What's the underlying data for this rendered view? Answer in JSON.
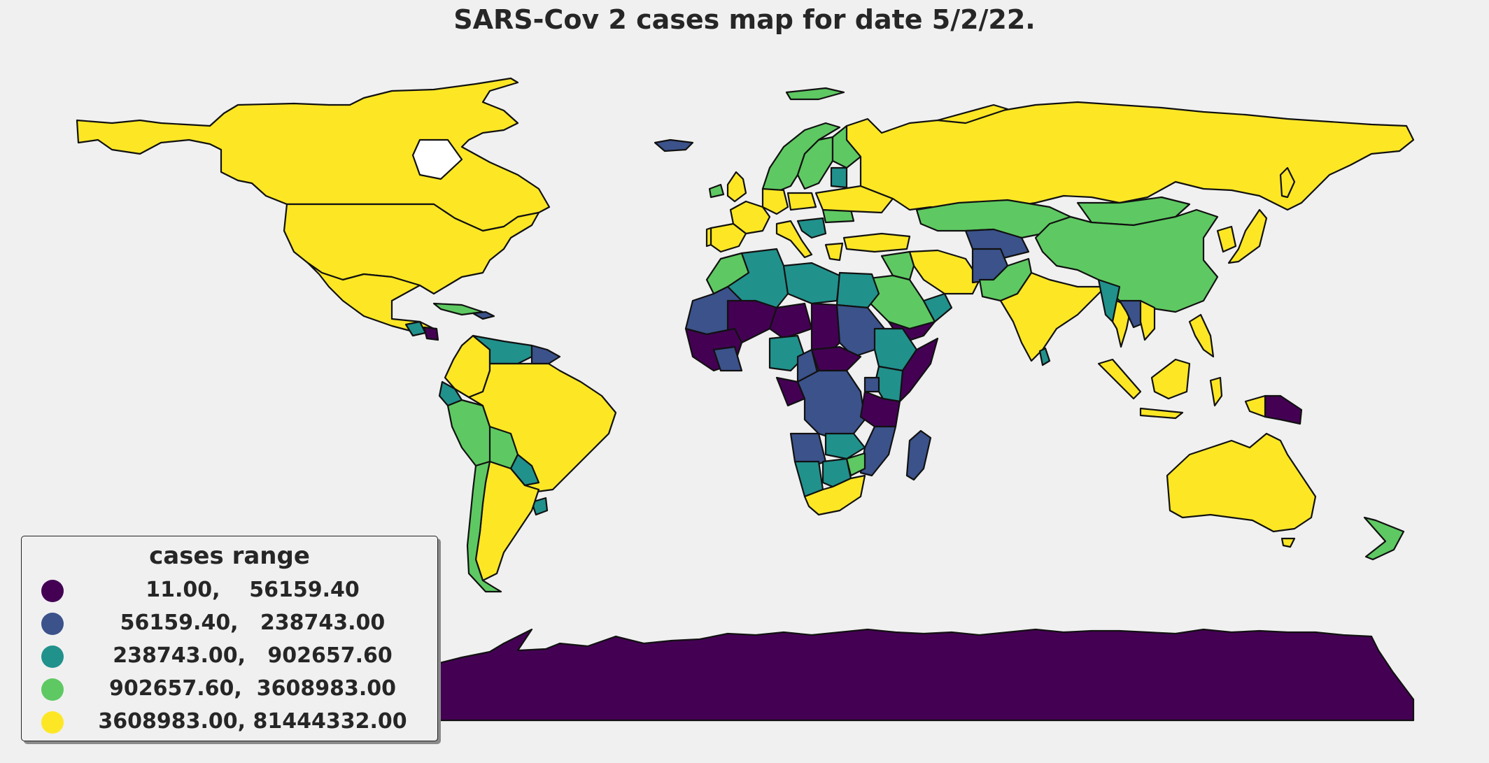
{
  "title": "SARS-Cov 2 cases map for date 5/2/22.",
  "legend": {
    "title": "cases range",
    "items": [
      {
        "label": "11.00,    56159.40",
        "color": "#440154"
      },
      {
        "label": "56159.40,   238743.00",
        "color": "#3b528b"
      },
      {
        "label": "238743.00,   902657.60",
        "color": "#21918c"
      },
      {
        "label": "902657.60,  3608983.00",
        "color": "#5ec962"
      },
      {
        "label": "3608983.00, 81444332.00",
        "color": "#fde725"
      }
    ]
  },
  "chart_data": {
    "type": "choropleth",
    "title": "SARS-Cov 2 cases map for date 5/2/22.",
    "legend_title": "cases range",
    "legend_location": "lower-left",
    "bins": [
      {
        "min": 11.0,
        "max": 56159.4,
        "color": "#440154"
      },
      {
        "min": 56159.4,
        "max": 238743.0,
        "color": "#3b528b"
      },
      {
        "min": 238743.0,
        "max": 902657.6,
        "color": "#21918c"
      },
      {
        "min": 902657.6,
        "max": 3608983.0,
        "color": "#5ec962"
      },
      {
        "min": 3608983.0,
        "max": 81444332.0,
        "color": "#fde725"
      }
    ],
    "regions": [
      {
        "name": "Canada",
        "bin": 4
      },
      {
        "name": "United States",
        "bin": 4
      },
      {
        "name": "Mexico",
        "bin": 4
      },
      {
        "name": "Greenland",
        "bin": -1
      },
      {
        "name": "Guatemala",
        "bin": 2
      },
      {
        "name": "Honduras",
        "bin": 0
      },
      {
        "name": "Cuba",
        "bin": 3
      },
      {
        "name": "Colombia",
        "bin": 4
      },
      {
        "name": "Venezuela",
        "bin": 2
      },
      {
        "name": "Guyana",
        "bin": 1
      },
      {
        "name": "Ecuador",
        "bin": 2
      },
      {
        "name": "Peru",
        "bin": 3
      },
      {
        "name": "Brazil",
        "bin": 4
      },
      {
        "name": "Bolivia",
        "bin": 3
      },
      {
        "name": "Paraguay",
        "bin": 2
      },
      {
        "name": "Chile",
        "bin": 3
      },
      {
        "name": "Argentina",
        "bin": 4
      },
      {
        "name": "Uruguay",
        "bin": 2
      },
      {
        "name": "Iceland",
        "bin": 1
      },
      {
        "name": "Norway",
        "bin": 3
      },
      {
        "name": "Sweden",
        "bin": 3
      },
      {
        "name": "Finland",
        "bin": 3
      },
      {
        "name": "United Kingdom",
        "bin": 4
      },
      {
        "name": "Ireland",
        "bin": 3
      },
      {
        "name": "France",
        "bin": 4
      },
      {
        "name": "Spain",
        "bin": 4
      },
      {
        "name": "Portugal",
        "bin": 4
      },
      {
        "name": "Germany",
        "bin": 4
      },
      {
        "name": "Italy",
        "bin": 4
      },
      {
        "name": "Poland",
        "bin": 4
      },
      {
        "name": "Ukraine",
        "bin": 4
      },
      {
        "name": "Romania",
        "bin": 3
      },
      {
        "name": "Greece",
        "bin": 4
      },
      {
        "name": "Turkey",
        "bin": 4
      },
      {
        "name": "Russia",
        "bin": 4
      },
      {
        "name": "Kazakhstan",
        "bin": 3
      },
      {
        "name": "Mongolia",
        "bin": 3
      },
      {
        "name": "China",
        "bin": 3
      },
      {
        "name": "Japan",
        "bin": 4
      },
      {
        "name": "South Korea",
        "bin": 4
      },
      {
        "name": "Iran",
        "bin": 4
      },
      {
        "name": "Iraq",
        "bin": 3
      },
      {
        "name": "Saudi Arabia",
        "bin": 3
      },
      {
        "name": "Yemen",
        "bin": 0
      },
      {
        "name": "Oman",
        "bin": 2
      },
      {
        "name": "Afghanistan",
        "bin": 1
      },
      {
        "name": "Pakistan",
        "bin": 3
      },
      {
        "name": "India",
        "bin": 4
      },
      {
        "name": "Myanmar",
        "bin": 2
      },
      {
        "name": "Thailand",
        "bin": 4
      },
      {
        "name": "Vietnam",
        "bin": 4
      },
      {
        "name": "Laos",
        "bin": 1
      },
      {
        "name": "Cambodia",
        "bin": 1
      },
      {
        "name": "Philippines",
        "bin": 4
      },
      {
        "name": "Indonesia",
        "bin": 4
      },
      {
        "name": "Malaysia",
        "bin": 4
      },
      {
        "name": "Papua New Guinea",
        "bin": 0
      },
      {
        "name": "Australia",
        "bin": 4
      },
      {
        "name": "New Zealand",
        "bin": 3
      },
      {
        "name": "Morocco",
        "bin": 3
      },
      {
        "name": "Algeria",
        "bin": 2
      },
      {
        "name": "Libya",
        "bin": 2
      },
      {
        "name": "Egypt",
        "bin": 2
      },
      {
        "name": "Mauritania",
        "bin": 1
      },
      {
        "name": "Mali",
        "bin": 0
      },
      {
        "name": "Niger",
        "bin": 0
      },
      {
        "name": "Chad",
        "bin": 0
      },
      {
        "name": "Sudan",
        "bin": 1
      },
      {
        "name": "Ethiopia",
        "bin": 2
      },
      {
        "name": "Somalia",
        "bin": 0
      },
      {
        "name": "Nigeria",
        "bin": 2
      },
      {
        "name": "Cameroon",
        "bin": 1
      },
      {
        "name": "Central African Republic",
        "bin": 0
      },
      {
        "name": "DR Congo",
        "bin": 1
      },
      {
        "name": "Kenya",
        "bin": 2
      },
      {
        "name": "Tanzania",
        "bin": 0
      },
      {
        "name": "Angola",
        "bin": 1
      },
      {
        "name": "Zambia",
        "bin": 2
      },
      {
        "name": "Mozambique",
        "bin": 1
      },
      {
        "name": "Namibia",
        "bin": 2
      },
      {
        "name": "Botswana",
        "bin": 2
      },
      {
        "name": "South Africa",
        "bin": 4
      },
      {
        "name": "Madagascar",
        "bin": 1
      },
      {
        "name": "Antarctica",
        "bin": 0
      }
    ]
  }
}
